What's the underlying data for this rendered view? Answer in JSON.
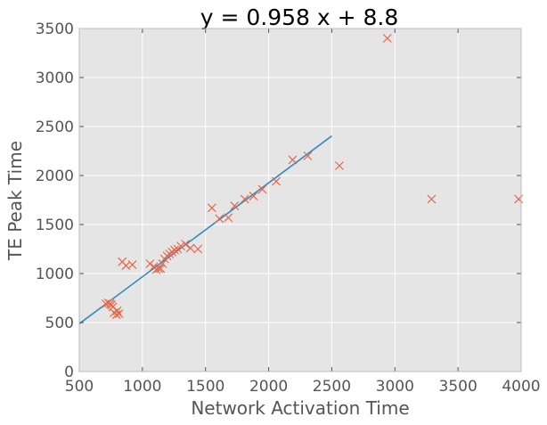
{
  "chart_data": {
    "type": "scatter",
    "title": "y = 0.958 x + 8.8",
    "xlabel": "Network Activation Time",
    "ylabel": "TE Peak Time",
    "xlim": [
      500,
      4000
    ],
    "ylim": [
      0,
      3500
    ],
    "xticks": [
      500,
      1000,
      1500,
      2000,
      2500,
      3000,
      3500,
      4000
    ],
    "yticks": [
      0,
      500,
      1000,
      1500,
      2000,
      2500,
      3000,
      3500
    ],
    "grid": true,
    "legend": "none",
    "colors": {
      "plot_background": "#e5e5e5",
      "grid": "#ffffff",
      "marker": "#e8664a",
      "fit_line": "#348abd",
      "text": "#555555",
      "title": "#000000"
    },
    "series": [
      {
        "kind": "scatter",
        "marker": "x",
        "points": [
          [
            710,
            690
          ],
          [
            730,
            700
          ],
          [
            745,
            690
          ],
          [
            755,
            680
          ],
          [
            765,
            660
          ],
          [
            775,
            600
          ],
          [
            795,
            580
          ],
          [
            800,
            620
          ],
          [
            815,
            590
          ],
          [
            840,
            1120
          ],
          [
            870,
            1080
          ],
          [
            920,
            1090
          ],
          [
            1060,
            1100
          ],
          [
            1090,
            1070
          ],
          [
            1110,
            1040
          ],
          [
            1130,
            1050
          ],
          [
            1145,
            1050
          ],
          [
            1160,
            1100
          ],
          [
            1175,
            1150
          ],
          [
            1195,
            1180
          ],
          [
            1215,
            1200
          ],
          [
            1235,
            1220
          ],
          [
            1255,
            1240
          ],
          [
            1280,
            1250
          ],
          [
            1305,
            1280
          ],
          [
            1340,
            1300
          ],
          [
            1380,
            1260
          ],
          [
            1440,
            1250
          ],
          [
            1550,
            1670
          ],
          [
            1610,
            1560
          ],
          [
            1680,
            1570
          ],
          [
            1730,
            1690
          ],
          [
            1810,
            1760
          ],
          [
            1880,
            1790
          ],
          [
            1950,
            1860
          ],
          [
            2060,
            1940
          ],
          [
            2190,
            2160
          ],
          [
            2310,
            2200
          ],
          [
            2560,
            2100
          ],
          [
            2940,
            3400
          ],
          [
            3290,
            1760
          ],
          [
            3980,
            1760
          ]
        ]
      },
      {
        "kind": "line",
        "x": [
          500,
          2500
        ],
        "y": [
          488,
          2404
        ]
      }
    ]
  }
}
